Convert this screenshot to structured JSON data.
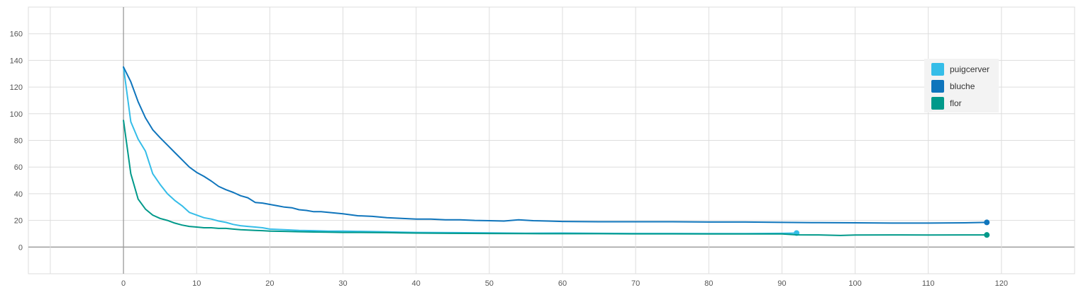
{
  "chart_data": {
    "type": "line",
    "title": "",
    "xlabel": "",
    "ylabel": "",
    "xlim": [
      -13,
      130
    ],
    "ylim": [
      -20,
      180
    ],
    "x_ticks": [
      0,
      10,
      20,
      30,
      40,
      50,
      60,
      70,
      80,
      90,
      100,
      110,
      120
    ],
    "y_ticks": [
      0,
      20,
      40,
      60,
      80,
      100,
      120,
      140,
      160
    ],
    "grid": true,
    "legend_position": "right",
    "series": [
      {
        "name": "puigcerver",
        "color": "#35bde8",
        "x": [
          0,
          1,
          2,
          3,
          4,
          5,
          6,
          7,
          8,
          9,
          10,
          11,
          12,
          13,
          14,
          15,
          16,
          17,
          18,
          19,
          20,
          22,
          24,
          26,
          28,
          30,
          32,
          34,
          36,
          38,
          40,
          45,
          50,
          55,
          60,
          65,
          70,
          75,
          80,
          85,
          90,
          92
        ],
        "values": [
          135,
          94,
          81,
          72,
          55,
          47,
          40,
          35,
          31,
          26,
          24,
          22,
          21,
          19.5,
          18.5,
          17,
          16,
          15.5,
          15,
          14.5,
          13.5,
          13,
          12.5,
          12.3,
          12,
          12,
          11.8,
          11.6,
          11.4,
          11.2,
          11,
          10.8,
          10.6,
          10.4,
          10.5,
          10.3,
          10.2,
          10.2,
          10.1,
          10.1,
          10.3,
          10.5
        ]
      },
      {
        "name": "bluche",
        "color": "#0f75bc",
        "x": [
          0,
          1,
          2,
          3,
          4,
          5,
          6,
          7,
          8,
          9,
          10,
          11,
          12,
          13,
          14,
          15,
          16,
          17,
          18,
          19,
          20,
          21,
          22,
          23,
          24,
          25,
          26,
          27,
          28,
          29,
          30,
          32,
          34,
          36,
          38,
          40,
          42,
          44,
          46,
          48,
          50,
          52,
          54,
          56,
          58,
          60,
          65,
          70,
          75,
          80,
          85,
          90,
          95,
          100,
          105,
          110,
          115,
          118
        ],
        "values": [
          135,
          124,
          109,
          97,
          88,
          82,
          76.5,
          71,
          65.5,
          60,
          56,
          53,
          49.5,
          45.5,
          43,
          41,
          38.5,
          37,
          33.5,
          33,
          32,
          31,
          30,
          29.5,
          28,
          27.5,
          26.5,
          26.5,
          26,
          25.5,
          25,
          23.5,
          23,
          22,
          21.5,
          21,
          21,
          20.5,
          20.5,
          20,
          19.8,
          19.5,
          20.5,
          19.8,
          19.5,
          19.2,
          19,
          19,
          19,
          18.8,
          18.8,
          18.5,
          18.3,
          18.2,
          18,
          18,
          18.2,
          18.5
        ]
      },
      {
        "name": "flor",
        "color": "#00998a",
        "x": [
          0,
          1,
          2,
          3,
          4,
          5,
          6,
          7,
          8,
          9,
          10,
          11,
          12,
          13,
          14,
          15,
          16,
          17,
          18,
          19,
          20,
          22,
          24,
          26,
          28,
          30,
          32,
          34,
          36,
          38,
          40,
          45,
          50,
          55,
          60,
          65,
          70,
          75,
          80,
          85,
          90,
          92,
          95,
          98,
          100,
          105,
          110,
          115,
          118
        ],
        "values": [
          95,
          55,
          36,
          28.5,
          24,
          21.5,
          20,
          18,
          16.5,
          15.5,
          15,
          14.5,
          14.5,
          14,
          14,
          13.5,
          13,
          12.8,
          12.5,
          12.3,
          12,
          11.8,
          11.5,
          11.3,
          11.2,
          11,
          11,
          10.9,
          10.8,
          10.6,
          10.5,
          10.3,
          10.2,
          10.1,
          10,
          10,
          9.9,
          9.9,
          9.8,
          9.8,
          9.8,
          9.2,
          9.1,
          8.7,
          9,
          9.1,
          9,
          9.1,
          9.1
        ]
      }
    ]
  }
}
